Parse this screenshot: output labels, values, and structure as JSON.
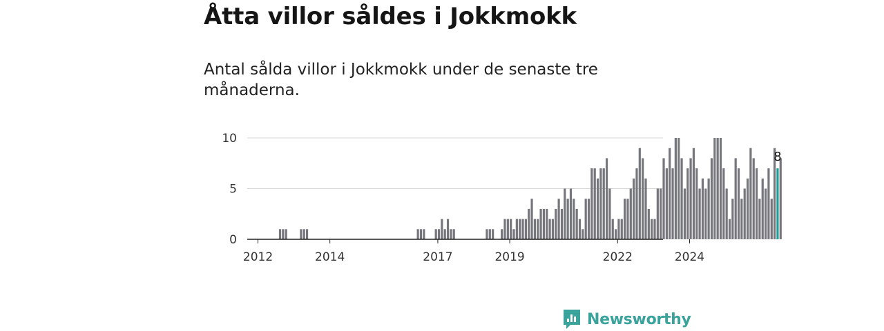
{
  "header": {
    "title": "Åtta villor såldes i Jokkmokk",
    "subtitle": "Antal sålda villor i Jokkmokk under de senaste tre månaderna."
  },
  "brand": {
    "name": "Newsworthy",
    "color": "#3aa39c"
  },
  "colors": {
    "bar": "#76767d",
    "highlight": "#1e9e97",
    "grid": "#d6d6d6",
    "axis": "#222222"
  },
  "chart_data": {
    "type": "bar",
    "title": "Åtta villor såldes i Jokkmokk",
    "subtitle": "Antal sålda villor i Jokkmokk under de senaste tre månaderna.",
    "xlabel": "",
    "ylabel": "",
    "ylim": [
      0,
      10
    ],
    "yticks": [
      0,
      5,
      10
    ],
    "grid": true,
    "start_month": "2011-10",
    "xticks": [
      {
        "label": "2012",
        "month": "2012-01"
      },
      {
        "label": "2014",
        "month": "2014-01"
      },
      {
        "label": "2017",
        "month": "2017-01"
      },
      {
        "label": "2019",
        "month": "2019-01"
      },
      {
        "label": "2022",
        "month": "2022-01"
      },
      {
        "label": "2024",
        "month": "2024-01"
      }
    ],
    "values": [
      0,
      0,
      0,
      0,
      0,
      0,
      0,
      0,
      0,
      0,
      1,
      1,
      1,
      0,
      0,
      0,
      0,
      1,
      1,
      1,
      0,
      0,
      0,
      0,
      0,
      0,
      0,
      0,
      0,
      0,
      0,
      0,
      0,
      0,
      0,
      0,
      0,
      0,
      0,
      0,
      0,
      0,
      0,
      0,
      0,
      0,
      0,
      0,
      0,
      0,
      0,
      0,
      0,
      0,
      0,
      0,
      1,
      1,
      1,
      0,
      0,
      0,
      1,
      1,
      2,
      1,
      2,
      1,
      1,
      0,
      0,
      0,
      0,
      0,
      0,
      0,
      0,
      0,
      0,
      1,
      1,
      1,
      0,
      0,
      1,
      2,
      2,
      2,
      1,
      2,
      2,
      2,
      2,
      3,
      4,
      2,
      2,
      3,
      3,
      3,
      2,
      2,
      3,
      4,
      3,
      5,
      4,
      5,
      4,
      3,
      2,
      1,
      4,
      4,
      7,
      7,
      6,
      7,
      7,
      8,
      5,
      2,
      1,
      2,
      2,
      4,
      4,
      5,
      6,
      7,
      9,
      8,
      6,
      3,
      2,
      2,
      5,
      5,
      8,
      7,
      9,
      7,
      10,
      10,
      8,
      5,
      7,
      8,
      9,
      7,
      5,
      6,
      5,
      6,
      8,
      10,
      10,
      10,
      7,
      5,
      2,
      4,
      8,
      7,
      4,
      5,
      6,
      9,
      8,
      7,
      4,
      6,
      5,
      7,
      4,
      9,
      7,
      8
    ],
    "highlight_index": 176,
    "highlight_label": "8",
    "legend": "none"
  }
}
